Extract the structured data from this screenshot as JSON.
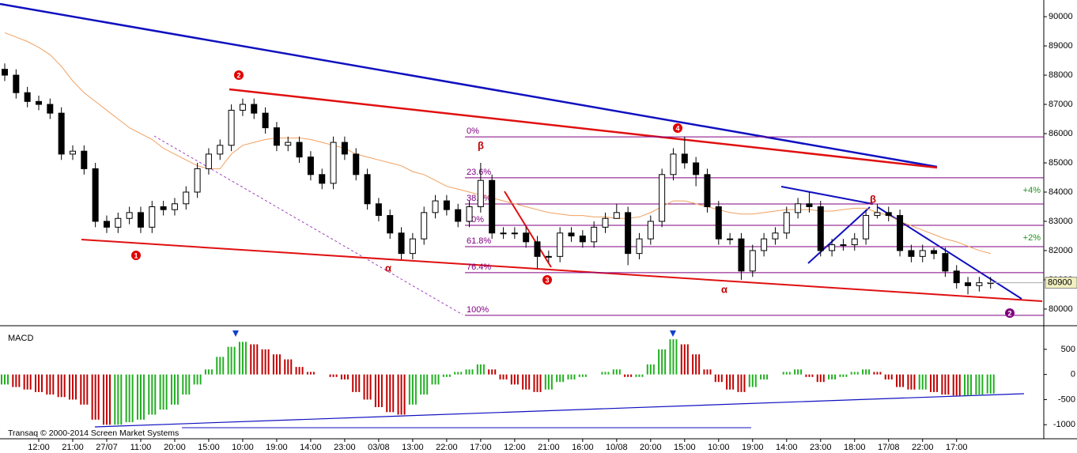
{
  "chart_data": {
    "type": "candlestick",
    "categories": [
      null,
      null,
      null,
      "12:00",
      null,
      null,
      "21:00",
      null,
      null,
      "27/07",
      null,
      null,
      "11:00",
      null,
      null,
      "20:00",
      null,
      null,
      "15:00",
      null,
      null,
      "10:00",
      null,
      null,
      "19:00",
      null,
      null,
      "14:00",
      null,
      null,
      "23:00",
      null,
      null,
      "03/08",
      null,
      null,
      "13:00",
      null,
      null,
      "22:00",
      null,
      null,
      "17:00",
      null,
      null,
      "12:00",
      null,
      null,
      "21:00",
      null,
      null,
      "16:00",
      null,
      null,
      "10/08",
      null,
      null,
      "20:00",
      null,
      null,
      "15:00",
      null,
      null,
      "10:00",
      null,
      null,
      "19:00",
      null,
      null,
      "14:00",
      null,
      null,
      "23:00",
      null,
      null,
      "18:00",
      null,
      null,
      "17/08",
      null,
      null,
      "22:00",
      null,
      null,
      "17:00",
      null,
      null,
      null
    ],
    "open": [
      88200,
      88000,
      87400,
      87100,
      87000,
      86700,
      85300,
      85400,
      84800,
      83000,
      82800,
      83100,
      83300,
      82800,
      83500,
      83400,
      83600,
      84000,
      84800,
      85300,
      85600,
      86800,
      87000,
      86700,
      86200,
      85600,
      85700,
      85200,
      84600,
      84300,
      85700,
      85300,
      84600,
      83600,
      83200,
      82600,
      81900,
      82400,
      83300,
      83700,
      83400,
      83000,
      83500,
      84400,
      82600,
      82600,
      82600,
      82300,
      81800,
      81800,
      82600,
      82500,
      82300,
      82800,
      83100,
      83300,
      81900,
      82400,
      83000,
      84600,
      85300,
      85000,
      84600,
      83500,
      82400,
      82400,
      81300,
      82000,
      82400,
      82600,
      83300,
      83600,
      83500,
      82000,
      82200,
      82200,
      82400,
      83200,
      83300,
      83200,
      82000,
      81800,
      82000,
      81900,
      81300,
      80900,
      80800,
      80900
    ],
    "high": [
      88400,
      88200,
      87600,
      87300,
      87200,
      86900,
      85600,
      85600,
      85000,
      83200,
      83300,
      83500,
      83500,
      83700,
      83700,
      83800,
      84200,
      85000,
      85500,
      85800,
      87000,
      87200,
      87200,
      86900,
      86400,
      85900,
      85900,
      85400,
      84800,
      85900,
      85900,
      85500,
      84800,
      83800,
      83400,
      82800,
      82600,
      83500,
      83900,
      83900,
      83600,
      83700,
      85000,
      84600,
      82800,
      82800,
      82800,
      82500,
      82000,
      82800,
      82800,
      82700,
      83000,
      83300,
      83600,
      83500,
      82600,
      83200,
      84800,
      85500,
      85900,
      85200,
      84800,
      83700,
      82600,
      82600,
      82200,
      82600,
      82800,
      83500,
      83800,
      84000,
      83700,
      82400,
      82400,
      82600,
      83400,
      83600,
      83500,
      83400,
      82200,
      82200,
      82100,
      82100,
      81500,
      81100,
      81100,
      81100
    ],
    "low": [
      87800,
      87200,
      86900,
      86800,
      86500,
      85100,
      85100,
      84600,
      82800,
      82600,
      82600,
      82900,
      82600,
      82600,
      83200,
      83200,
      83400,
      83800,
      84600,
      85100,
      85400,
      86600,
      86500,
      86000,
      85400,
      85400,
      85000,
      84400,
      84100,
      84100,
      85100,
      84400,
      83400,
      83000,
      82400,
      81700,
      81700,
      82200,
      83100,
      83200,
      82800,
      82800,
      83300,
      82400,
      82400,
      82400,
      82100,
      81400,
      81600,
      81600,
      82300,
      82100,
      82100,
      82600,
      83100,
      81500,
      81700,
      82200,
      82800,
      84400,
      84800,
      84200,
      83300,
      82200,
      82200,
      81000,
      81100,
      81800,
      82200,
      82400,
      83100,
      83300,
      81800,
      81800,
      82000,
      82000,
      82200,
      83100,
      83000,
      81800,
      81600,
      81600,
      81700,
      81100,
      80700,
      80500,
      80600,
      80700
    ],
    "close": [
      88000,
      87400,
      87100,
      87000,
      86700,
      85300,
      85400,
      84800,
      83000,
      82800,
      83100,
      83300,
      82800,
      83500,
      83400,
      83600,
      84000,
      84800,
      85300,
      85600,
      86800,
      87000,
      86700,
      86200,
      85600,
      85700,
      85200,
      84600,
      84300,
      85700,
      85300,
      84600,
      83600,
      83200,
      82600,
      81900,
      82400,
      83300,
      83700,
      83400,
      83000,
      83500,
      84400,
      82600,
      82600,
      82600,
      82300,
      81800,
      81800,
      82600,
      82500,
      82300,
      82800,
      83100,
      83300,
      81900,
      82400,
      83000,
      84600,
      85300,
      85000,
      84600,
      83500,
      82400,
      82400,
      81300,
      82000,
      82400,
      82600,
      83300,
      83600,
      83500,
      82000,
      82200,
      82200,
      82400,
      83200,
      83300,
      83200,
      82000,
      81800,
      82000,
      81900,
      81300,
      80900,
      80800,
      80900,
      80900
    ],
    "up_color": "#ffffff",
    "down_color": "#000000",
    "ylim": [
      79430,
      90570
    ],
    "yticks": [
      80000,
      81000,
      82000,
      83000,
      84000,
      85000,
      86000,
      87000,
      88000,
      89000,
      90000
    ],
    "moving_average": {
      "color": "#f0a060",
      "values": [
        89450,
        89300,
        89150,
        88950,
        88700,
        88300,
        87800,
        87400,
        87100,
        86800,
        86500,
        86200,
        86000,
        85800,
        85500,
        85300,
        85100,
        84900,
        84800,
        84800,
        85300,
        85600,
        85700,
        85800,
        85850,
        85850,
        85850,
        85800,
        85700,
        85600,
        85500,
        85300,
        85200,
        85100,
        85000,
        84900,
        84700,
        84600,
        84400,
        84200,
        84100,
        84000,
        83900,
        83800,
        83700,
        83600,
        83500,
        83400,
        83300,
        83250,
        83200,
        83200,
        83150,
        83150,
        83100,
        83100,
        83150,
        83300,
        83500,
        83700,
        83700,
        83600,
        83500,
        83400,
        83300,
        83250,
        83250,
        83300,
        83350,
        83400,
        83400,
        83400,
        83350,
        83350,
        83400,
        83450,
        83450,
        83300,
        83200,
        83000,
        82850,
        82700,
        82550,
        82400,
        82300,
        82150,
        82000,
        81900
      ]
    },
    "fib_levels": {
      "color": "#800080",
      "levels": [
        {
          "label": "0%",
          "value": 85890
        },
        {
          "label": "23.6%",
          "value": 84490
        },
        {
          "label": "38.2%",
          "value": 83595
        },
        {
          "label": "50%",
          "value": 82865
        },
        {
          "label": "61.8%",
          "value": 82135
        },
        {
          "label": "76.4%",
          "value": 81245
        },
        {
          "label": "100%",
          "value": 79785
        }
      ]
    },
    "wave_labels": [
      "2",
      "1",
      "α",
      "β",
      "3",
      "4",
      "α",
      "β",
      "2"
    ],
    "targets": [
      "+4%",
      "+2%"
    ],
    "macd": {
      "title": "MACD",
      "ylim": [
        -1280,
        970
      ],
      "yticks": [
        500,
        0,
        -500,
        -1000
      ],
      "up_color": "#22b022",
      "down_color": "#c00000",
      "values": [
        -200,
        -250,
        -300,
        -350,
        -400,
        -450,
        -500,
        -600,
        -900,
        -1000,
        -1000,
        -950,
        -900,
        -800,
        -700,
        -600,
        -400,
        -200,
        100,
        350,
        550,
        650,
        600,
        500,
        400,
        300,
        150,
        50,
        0,
        -50,
        -100,
        -350,
        -500,
        -650,
        -750,
        -800,
        -600,
        -400,
        -200,
        -50,
        50,
        100,
        200,
        100,
        -100,
        -200,
        -300,
        -350,
        -300,
        -150,
        -100,
        -50,
        0,
        50,
        100,
        -50,
        -50,
        200,
        500,
        700,
        600,
        400,
        100,
        -150,
        -300,
        -350,
        -250,
        -100,
        0,
        50,
        100,
        -50,
        -150,
        -100,
        -50,
        50,
        100,
        50,
        -100,
        -250,
        -300,
        -300,
        -350,
        -400,
        -420,
        -420,
        -400,
        -380
      ]
    },
    "copyright": "Transaq © 2000-2014 Screen Market Systems"
  }
}
